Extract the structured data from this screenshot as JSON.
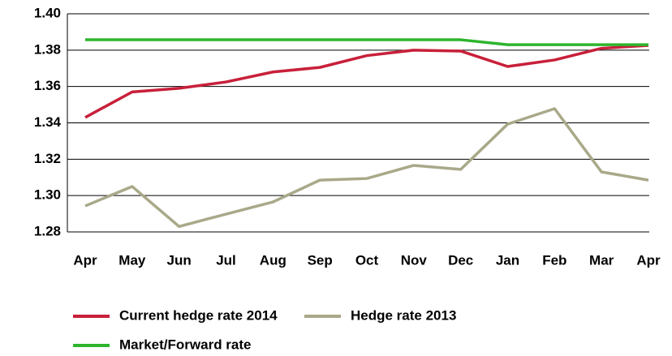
{
  "chart_data": {
    "type": "line",
    "categories": [
      "Apr",
      "May",
      "Jun",
      "Jul",
      "Aug",
      "Sep",
      "Oct",
      "Nov",
      "Dec",
      "Jan",
      "Feb",
      "Mar",
      "Apr"
    ],
    "series": [
      {
        "name": "Current hedge rate 2014",
        "color": "#c8203a",
        "values": [
          1.343,
          1.357,
          1.359,
          1.3625,
          1.368,
          1.3705,
          1.377,
          1.38,
          1.3795,
          1.371,
          1.3746,
          1.381,
          1.3826
        ]
      },
      {
        "name": "Hedge rate 2013",
        "color": "#a9a98a",
        "values": [
          1.2943,
          1.305,
          1.283,
          1.2898,
          1.2965,
          1.3085,
          1.3094,
          1.3166,
          1.3144,
          1.3393,
          1.3478,
          1.313,
          1.3085
        ]
      },
      {
        "name": "Market/Forward rate",
        "color": "#2db52d",
        "values": [
          1.3857,
          1.3857,
          1.3857,
          1.3857,
          1.3857,
          1.3857,
          1.3857,
          1.3857,
          1.3857,
          1.383,
          1.383,
          1.383,
          1.383
        ]
      }
    ],
    "ylim": [
      1.28,
      1.4
    ],
    "yticks": [
      {
        "value": 1.4,
        "label": "1.40"
      },
      1.38,
      1.36,
      1.34,
      1.32,
      {
        "value": 1.3,
        "label": "1.30"
      },
      1.28
    ],
    "grid": true
  }
}
